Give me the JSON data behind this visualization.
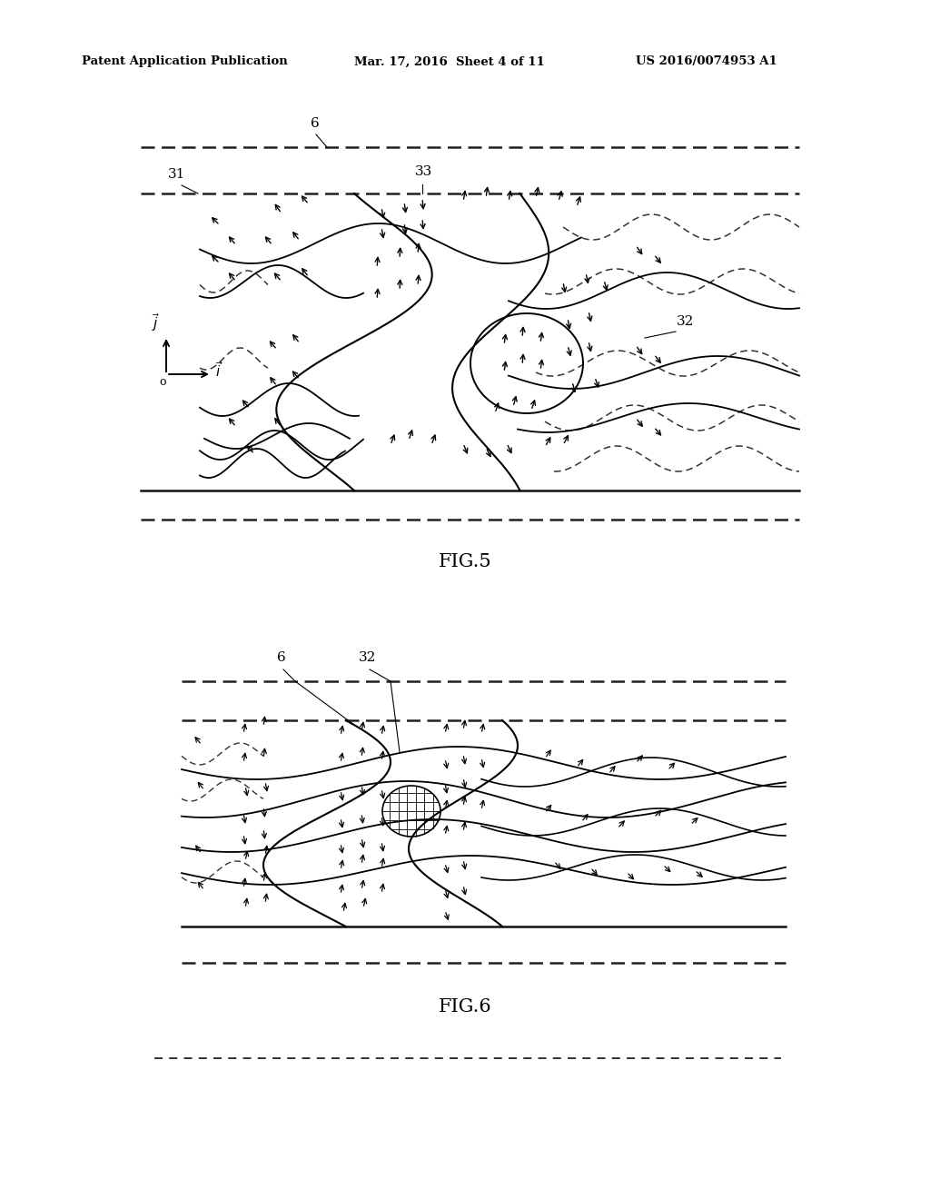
{
  "header_left": "Patent Application Publication",
  "header_mid": "Mar. 17, 2016  Sheet 4 of 11",
  "header_right": "US 2016/0074953 A1",
  "fig5_label": "FIG.5",
  "fig6_label": "FIG.6",
  "bg_color": "#ffffff",
  "line_color": "#000000"
}
